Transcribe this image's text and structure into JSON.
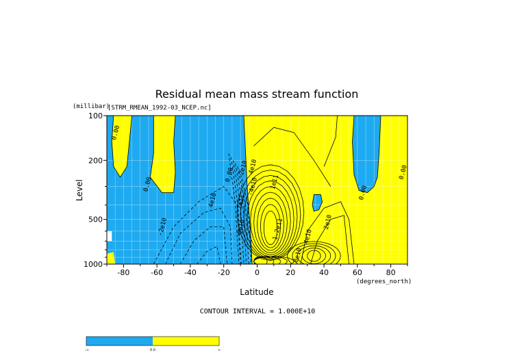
{
  "colors": {
    "negative_fill": "#1eaaf0",
    "positive_fill": "#ffff00",
    "contour_line": "#000000",
    "background": "#ffffff"
  },
  "chart_data": {
    "type": "contour",
    "title": "Residual mean mass stream function",
    "dataset_label": "[STRM_RMEAN_1992-03_NCEP.nc]",
    "xlabel": "Latitude",
    "xunits": "(degrees_north)",
    "ylabel": "Level",
    "yunits": "(millibar)",
    "xlim": [
      -90,
      90
    ],
    "ylim": [
      1000,
      100
    ],
    "y_scale": "log",
    "x_ticks": [
      -80,
      -60,
      -40,
      -20,
      0,
      20,
      40,
      60,
      80
    ],
    "x_tick_labels": [
      "-80",
      "-60",
      "-40",
      "-20",
      "0",
      "20",
      "40",
      "60",
      "80"
    ],
    "y_ticks": [
      100,
      200,
      500,
      1000
    ],
    "y_tick_labels": [
      "100",
      "200",
      "500",
      "1000"
    ],
    "grid": true,
    "contour_interval_text": "CONTOUR INTERVAL = 1.000E+10",
    "contour_labels": [
      {
        "text": "0.00",
        "lat": -85,
        "p": 130
      },
      {
        "text": "0.00",
        "lat": -66,
        "p": 290
      },
      {
        "text": "-2e10",
        "lat": -57,
        "p": 560
      },
      {
        "text": "4e10",
        "lat": -27,
        "p": 370
      },
      {
        "text": "0.00",
        "lat": -17,
        "p": 250
      },
      {
        "text": "-2e10",
        "lat": -9,
        "p": 230
      },
      {
        "text": "4e10",
        "lat": -3,
        "p": 220
      },
      {
        "text": "-4e10",
        "lat": -3,
        "p": 300
      },
      {
        "text": "1e11",
        "lat": -10,
        "p": 380
      },
      {
        "text": "8e10",
        "lat": -10,
        "p": 560
      },
      {
        "text": "1e11",
        "lat": 10,
        "p": 280
      },
      {
        "text": "1.2e11",
        "lat": 12,
        "p": 580
      },
      {
        "text": "8e10",
        "lat": 24,
        "p": 870
      },
      {
        "text": "4e10",
        "lat": 30,
        "p": 650
      },
      {
        "text": "2e10",
        "lat": 42,
        "p": 520
      },
      {
        "text": "0.00",
        "lat": 63,
        "p": 330
      },
      {
        "text": "0.00",
        "lat": 87,
        "p": 240
      }
    ],
    "colorbar": {
      "tick_labels": [
        "-∞",
        "0.0",
        "∞"
      ],
      "segments": [
        "negative",
        "positive"
      ]
    }
  }
}
